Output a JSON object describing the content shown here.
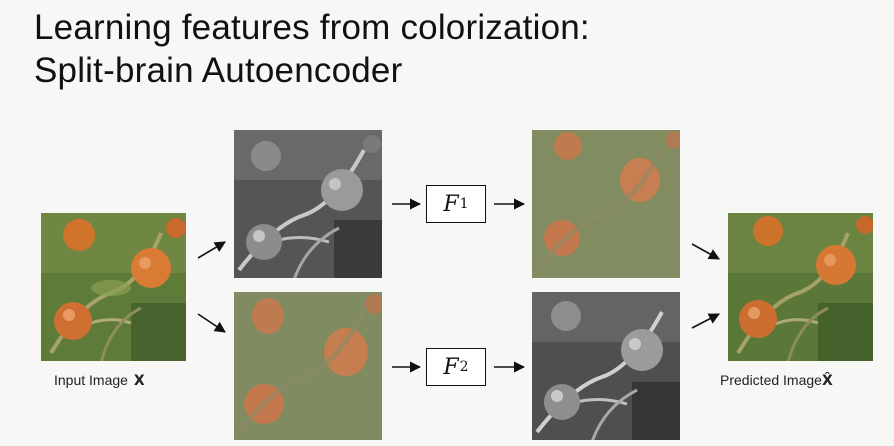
{
  "title": {
    "line1": "Learning features from colorization:",
    "line2": "Split-brain Autoencoder"
  },
  "captions": {
    "input": "Input Image",
    "input_symbol": "X",
    "output": "Predicted Image",
    "output_symbol": "X̂"
  },
  "modules": {
    "f1_symbol": "F",
    "f1_sub": "1",
    "f2_symbol": "F",
    "f2_sub": "2"
  },
  "colors": {
    "background": "#f7f7f5",
    "foliage": "#5e7a3a",
    "berry": "#d7742f",
    "ab_green": "#7d8b5d",
    "ab_orange": "#d4774a"
  }
}
